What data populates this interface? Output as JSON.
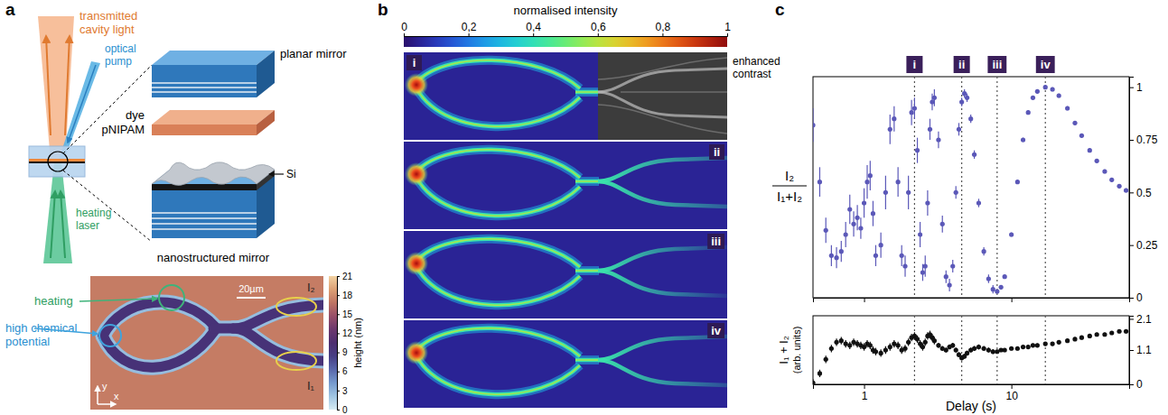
{
  "panel_a": {
    "letter": "a",
    "schematic": {
      "transmitted_light": "transmitted cavity light",
      "optical_pump": "optical pump",
      "heating_laser": "heating laser",
      "planar_mirror": "planar mirror",
      "dye": "dye",
      "pnipam": "pNIPAM",
      "nanostructured_mirror": "nanostructured mirror",
      "si": "Si"
    },
    "afm": {
      "heating": "heating",
      "high_chemical_potential": "high chemical potential",
      "scale_bar": "20µm",
      "i2": "I₂",
      "i1": "I₁",
      "axis_y": "y",
      "axis_x": "x",
      "colorbar": {
        "label": "height (nm)",
        "range": [
          0,
          21
        ],
        "ticks": [
          0,
          3,
          6,
          9,
          12,
          15,
          18,
          21
        ]
      }
    }
  },
  "panel_b": {
    "letter": "b",
    "colorbar": {
      "label": "normalised intensity",
      "range": [
        0,
        1
      ],
      "ticks": [
        0,
        {
          "value": 0.2,
          "label": "0,2"
        },
        {
          "value": 0.4,
          "label": "0,4"
        },
        {
          "value": 0.6,
          "label": "0,6"
        },
        {
          "value": 0.8,
          "label": "0,8"
        },
        1
      ]
    },
    "frames": [
      "i",
      "ii",
      "iii",
      "iv"
    ],
    "enhanced_contrast": "enhanced contrast"
  },
  "panel_c": {
    "letter": "c"
  },
  "chart_data": [
    {
      "type": "scatter",
      "log": "x",
      "grid": false,
      "tick_labels": "y",
      "marker": "circle",
      "color": "#5b58b8",
      "xlim": [
        0.45,
        63
      ],
      "xticks": [
        1,
        10
      ],
      "ylim": [
        0,
        1.05
      ],
      "yticks": [
        0,
        0.25,
        0.5,
        0.75,
        1
      ],
      "ylabel": {
        "numerator": "I₂",
        "denominator": "I₁+I₂"
      },
      "annotations": [
        {
          "x": 2.2,
          "label": "i"
        },
        {
          "x": 4.6,
          "label": "ii"
        },
        {
          "x": 8,
          "label": "iii"
        },
        {
          "x": 17,
          "label": "iv"
        }
      ],
      "x": [
        0.45,
        0.5,
        0.55,
        0.6,
        0.65,
        0.7,
        0.75,
        0.8,
        0.85,
        0.9,
        0.95,
        1.0,
        1.05,
        1.1,
        1.15,
        1.2,
        1.3,
        1.4,
        1.5,
        1.6,
        1.7,
        1.8,
        1.9,
        2.0,
        2.1,
        2.2,
        2.3,
        2.4,
        2.5,
        2.6,
        2.7,
        2.8,
        2.9,
        3.0,
        3.2,
        3.4,
        3.6,
        3.8,
        4.0,
        4.2,
        4.4,
        4.6,
        4.8,
        5.0,
        5.3,
        5.6,
        6.0,
        6.5,
        7.0,
        7.5,
        8.0,
        8.5,
        9,
        10,
        11,
        12,
        13,
        14,
        15,
        17,
        19,
        21,
        24,
        27,
        30,
        34,
        38,
        43,
        48,
        54,
        60
      ],
      "values": [
        0.82,
        0.55,
        0.32,
        0.2,
        0.19,
        0.22,
        0.3,
        0.42,
        0.35,
        0.38,
        0.33,
        0.45,
        0.55,
        0.58,
        0.4,
        0.2,
        0.25,
        0.5,
        0.8,
        0.85,
        0.55,
        0.2,
        0.15,
        0.5,
        0.88,
        0.9,
        0.7,
        0.3,
        0.12,
        0.15,
        0.45,
        0.8,
        0.93,
        0.95,
        0.75,
        0.35,
        0.1,
        0.06,
        0.15,
        0.5,
        0.8,
        0.93,
        0.97,
        0.95,
        0.85,
        0.68,
        0.45,
        0.22,
        0.09,
        0.04,
        0.03,
        0.05,
        0.1,
        0.3,
        0.55,
        0.75,
        0.88,
        0.95,
        0.98,
        1.0,
        0.99,
        0.96,
        0.9,
        0.83,
        0.77,
        0.7,
        0.65,
        0.6,
        0.56,
        0.53,
        0.51
      ],
      "errors": [
        0.08,
        0.07,
        0.06,
        0.05,
        0.05,
        0.05,
        0.06,
        0.07,
        0.06,
        0.06,
        0.05,
        0.07,
        0.08,
        0.07,
        0.06,
        0.05,
        0.06,
        0.08,
        0.07,
        0.06,
        0.07,
        0.05,
        0.05,
        0.08,
        0.06,
        0.05,
        0.06,
        0.06,
        0.04,
        0.05,
        0.06,
        0.05,
        0.04,
        0.04,
        0.04,
        0.04,
        0.03,
        0.03,
        0.03,
        0.03,
        0.03,
        0.02,
        0.02,
        0.02,
        0.02,
        0.02,
        0.02,
        0.02,
        0.02,
        0.02,
        0.01,
        0.01,
        0.01,
        0.01,
        0.01,
        0.01,
        0.01,
        0.01,
        0.01,
        0.01,
        0.01,
        0.01,
        0.01,
        0.01,
        0.01,
        0.01,
        0.01,
        0.01,
        0.01,
        0.01,
        0.01
      ]
    },
    {
      "type": "scatter",
      "log": "x",
      "grid": false,
      "marker": "circle",
      "color": "#111111",
      "xlim": [
        0.45,
        63
      ],
      "xticks": [
        1,
        10
      ],
      "ylim": [
        0,
        2.2
      ],
      "yticks": [
        0,
        1.1,
        2.1
      ],
      "xlabel": "Delay (s)",
      "ylabel": [
        "I₁ + I₂",
        "(arb. units)"
      ],
      "x": [
        0.45,
        0.5,
        0.55,
        0.6,
        0.65,
        0.7,
        0.75,
        0.8,
        0.85,
        0.9,
        0.95,
        1.0,
        1.05,
        1.1,
        1.15,
        1.2,
        1.3,
        1.4,
        1.5,
        1.6,
        1.7,
        1.8,
        1.9,
        2.0,
        2.1,
        2.2,
        2.3,
        2.4,
        2.5,
        2.6,
        2.7,
        2.8,
        2.9,
        3.0,
        3.2,
        3.4,
        3.6,
        3.8,
        4.0,
        4.2,
        4.4,
        4.6,
        4.8,
        5.0,
        5.3,
        5.6,
        6.0,
        6.5,
        7.0,
        7.5,
        8.0,
        8.5,
        9,
        10,
        11,
        12,
        13,
        14,
        15,
        17,
        19,
        21,
        24,
        27,
        30,
        34,
        38,
        43,
        48,
        54,
        60
      ],
      "values": [
        0.05,
        0.35,
        0.8,
        1.15,
        1.35,
        1.4,
        1.3,
        1.25,
        1.35,
        1.3,
        1.25,
        1.2,
        1.3,
        1.25,
        1.1,
        1.05,
        1.0,
        1.1,
        1.2,
        1.3,
        1.25,
        1.1,
        1.15,
        1.35,
        1.5,
        1.55,
        1.45,
        1.3,
        1.2,
        1.35,
        1.55,
        1.6,
        1.5,
        1.4,
        1.25,
        1.15,
        1.1,
        1.2,
        1.25,
        1.1,
        0.95,
        0.85,
        0.9,
        1.0,
        1.1,
        1.15,
        1.2,
        1.15,
        1.1,
        1.05,
        1.05,
        1.1,
        1.1,
        1.15,
        1.15,
        1.2,
        1.2,
        1.25,
        1.25,
        1.3,
        1.3,
        1.35,
        1.4,
        1.45,
        1.5,
        1.55,
        1.6,
        1.6,
        1.65,
        1.7,
        1.7
      ],
      "errors": [
        0.12,
        0.12,
        0.12,
        0.12,
        0.12,
        0.12,
        0.12,
        0.12,
        0.12,
        0.12,
        0.12,
        0.12,
        0.12,
        0.12,
        0.12,
        0.12,
        0.12,
        0.12,
        0.12,
        0.12,
        0.12,
        0.12,
        0.12,
        0.12,
        0.12,
        0.12,
        0.12,
        0.12,
        0.12,
        0.12,
        0.12,
        0.12,
        0.12,
        0.12,
        0.08,
        0.08,
        0.08,
        0.08,
        0.08,
        0.08,
        0.08,
        0.08,
        0.08,
        0.08,
        0.08,
        0.08,
        0.08,
        0.08,
        0.08,
        0.08,
        0.06,
        0.06,
        0.06,
        0.06,
        0.06,
        0.06,
        0.06,
        0.06,
        0.06,
        0.06,
        0.06,
        0.06,
        0.06,
        0.06,
        0.06,
        0.06,
        0.06,
        0.06,
        0.06,
        0.06,
        0.06
      ]
    }
  ]
}
